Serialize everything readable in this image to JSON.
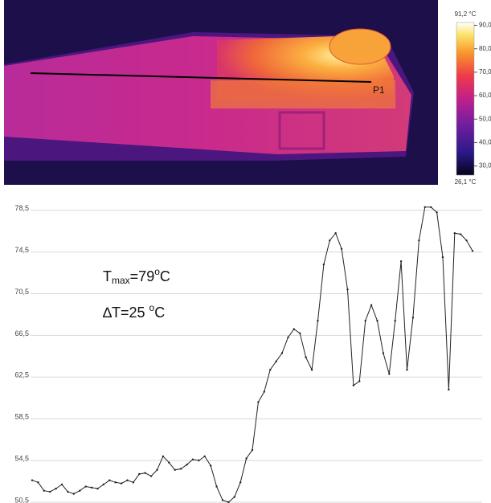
{
  "thermal_image": {
    "marker_label": "P1",
    "colorbar": {
      "range": [
        {
          "value": 26.1,
          "label": "26,1 °C"
        },
        {
          "value": 91.2,
          "label": "91,2 °C"
        }
      ],
      "ticks": [
        {
          "value": 90,
          "label": "90,0"
        },
        {
          "value": 80,
          "label": "80,0"
        },
        {
          "value": 70,
          "label": "70,0"
        },
        {
          "value": 60,
          "label": "60,0"
        },
        {
          "value": 50,
          "label": "50,0"
        },
        {
          "value": 40,
          "label": "40,0"
        },
        {
          "value": 30,
          "label": "30,0"
        }
      ]
    }
  },
  "chart_data": {
    "type": "line",
    "color": "#222222",
    "grid": true,
    "annotations": [
      [
        "T",
        "max",
        "=79",
        "o",
        "C"
      ],
      [
        "∆T=25 ",
        "o",
        "C"
      ]
    ],
    "values": [
      52.6,
      52.4,
      51.6,
      51.5,
      51.8,
      52.2,
      51.5,
      51.3,
      51.6,
      52.0,
      51.9,
      51.8,
      52.2,
      52.6,
      52.4,
      52.3,
      52.6,
      52.4,
      53.2,
      53.3,
      53.0,
      53.6,
      54.9,
      54.3,
      53.6,
      53.7,
      54.1,
      54.6,
      54.5,
      54.9,
      54.0,
      52.0,
      50.7,
      50.5,
      51.0,
      52.4,
      54.7,
      55.5,
      60.1,
      61.1,
      63.2,
      64.0,
      64.8,
      66.3,
      67.1,
      66.7,
      64.4,
      63.2,
      67.9,
      73.3,
      75.6,
      76.3,
      74.8,
      70.9,
      61.7,
      62.1,
      67.9,
      69.4,
      67.9,
      64.8,
      62.8,
      67.9,
      73.6,
      63.2,
      68.2,
      75.6,
      78.8,
      78.8,
      78.3,
      74.0,
      61.3,
      76.3,
      76.2,
      75.6,
      74.6
    ],
    "ylim": [
      50.5,
      79.4
    ],
    "yticks": [
      {
        "value": 50.5,
        "label": "50,5"
      },
      {
        "value": 54.5,
        "label": "54,5"
      },
      {
        "value": 58.5,
        "label": "58,5"
      },
      {
        "value": 62.5,
        "label": "62,5"
      },
      {
        "value": 66.5,
        "label": "66,5"
      },
      {
        "value": 70.5,
        "label": "70,5"
      },
      {
        "value": 74.5,
        "label": "74,5"
      },
      {
        "value": 78.5,
        "label": "78,5"
      }
    ]
  }
}
